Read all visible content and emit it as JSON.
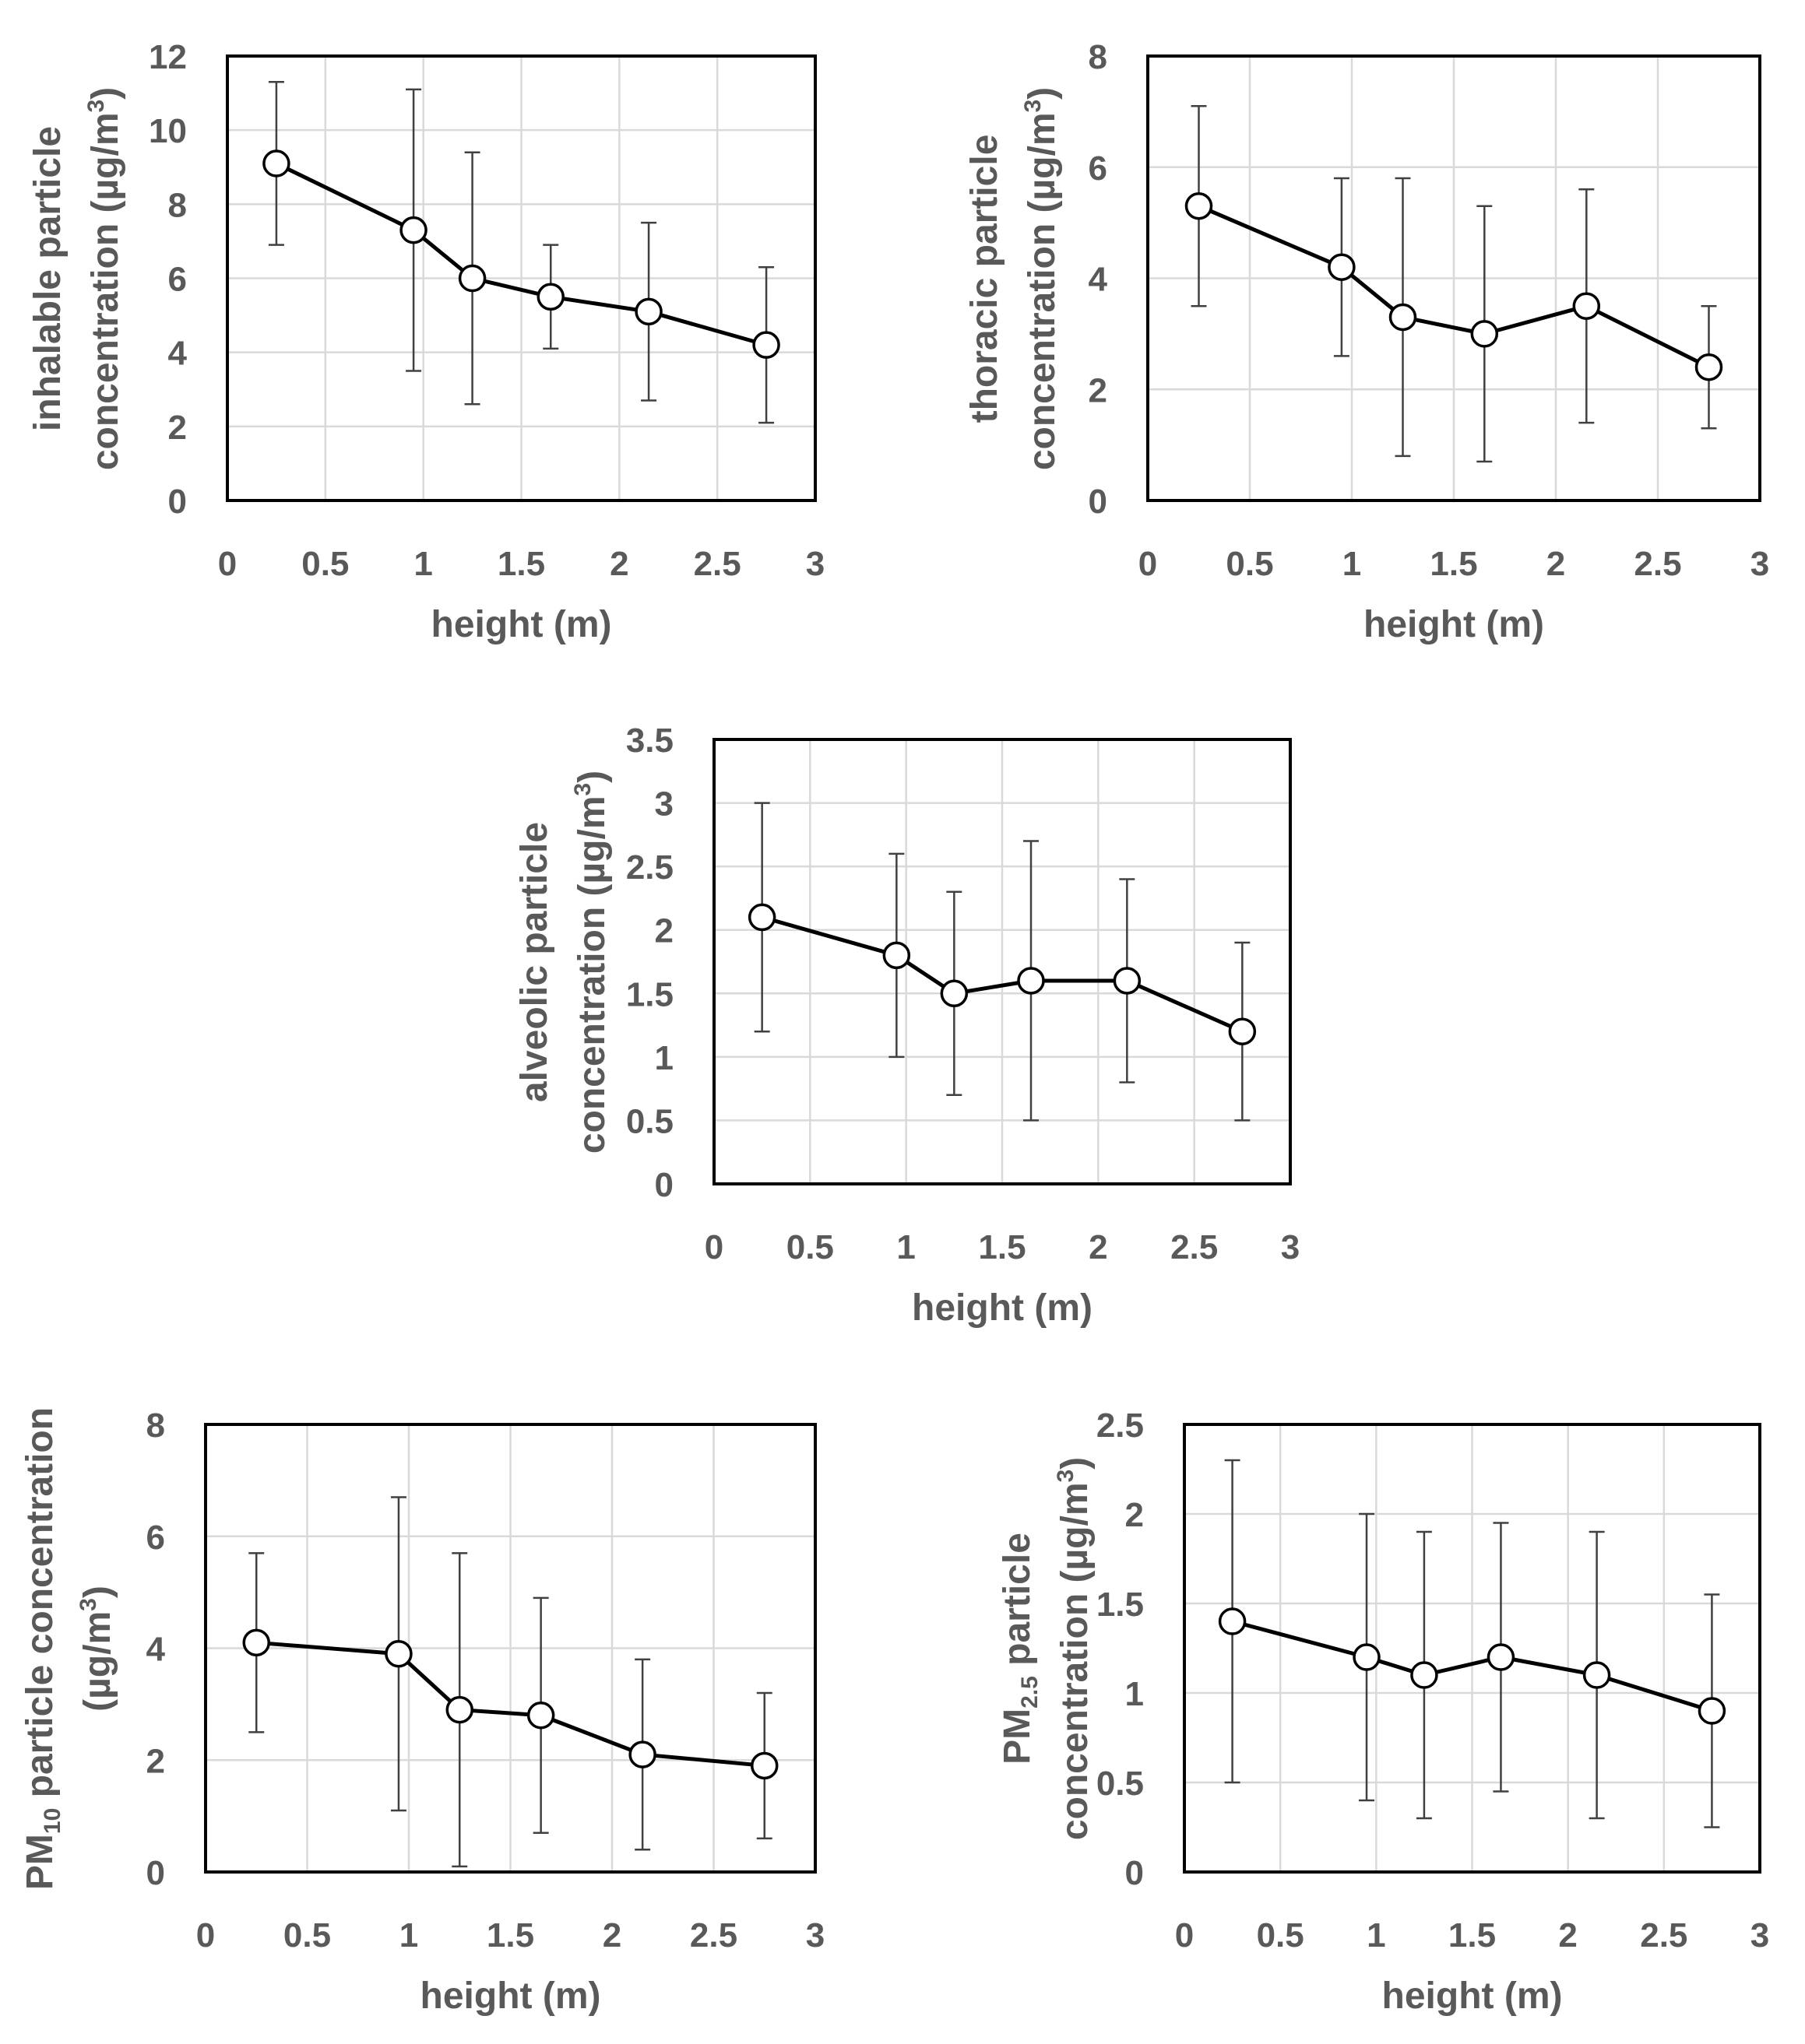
{
  "chart_data": [
    {
      "type": "line",
      "xlabel": "height (m)",
      "ylabel_lines": [
        "inhalable particle",
        "concentration (µg/m",
        "3",
        ")"
      ],
      "xlim": [
        0,
        3
      ],
      "xticks": [
        0,
        0.5,
        1,
        1.5,
        2,
        2.5,
        3
      ],
      "xtick_labels": [
        "0",
        "0.5",
        "1",
        "1.5",
        "2",
        "2.5",
        "3"
      ],
      "ylim": [
        0,
        12
      ],
      "yticks": [
        0,
        2,
        4,
        6,
        8,
        10,
        12
      ],
      "ytick_labels": [
        "0",
        "2",
        "4",
        "6",
        "8",
        "10",
        "12"
      ],
      "grid": true,
      "series": [
        {
          "x": [
            0.25,
            0.95,
            1.25,
            1.65,
            2.15,
            2.75
          ],
          "y": [
            9.1,
            7.3,
            6.0,
            5.5,
            5.1,
            4.2
          ],
          "err_low": [
            6.9,
            3.5,
            2.6,
            4.1,
            2.7,
            2.1
          ],
          "err_high": [
            11.3,
            11.1,
            9.4,
            6.9,
            7.5,
            6.3
          ]
        }
      ]
    },
    {
      "type": "line",
      "xlabel": "height (m)",
      "ylabel_lines": [
        "thoracic particle",
        "concentration (µg/m",
        "3",
        ")"
      ],
      "xlim": [
        0,
        3
      ],
      "xticks": [
        0,
        0.5,
        1,
        1.5,
        2,
        2.5,
        3
      ],
      "xtick_labels": [
        "0",
        "0.5",
        "1",
        "1.5",
        "2",
        "2.5",
        "3"
      ],
      "ylim": [
        0,
        8
      ],
      "yticks": [
        0,
        2,
        4,
        6,
        8
      ],
      "ytick_labels": [
        "0",
        "2",
        "4",
        "6",
        "8"
      ],
      "grid": true,
      "series": [
        {
          "x": [
            0.25,
            0.95,
            1.25,
            1.65,
            2.15,
            2.75
          ],
          "y": [
            5.3,
            4.2,
            3.3,
            3.0,
            3.5,
            2.4
          ],
          "err_low": [
            3.5,
            2.6,
            0.8,
            0.7,
            1.4,
            1.3
          ],
          "err_high": [
            7.1,
            5.8,
            5.8,
            5.3,
            5.6,
            3.5
          ]
        }
      ]
    },
    {
      "type": "line",
      "xlabel": "height (m)",
      "ylabel_lines": [
        "alveolic particle",
        "concentration (µg/m",
        "3",
        ")"
      ],
      "xlim": [
        0,
        3
      ],
      "xticks": [
        0,
        0.5,
        1,
        1.5,
        2,
        2.5,
        3
      ],
      "xtick_labels": [
        "0",
        "0.5",
        "1",
        "1.5",
        "2",
        "2.5",
        "3"
      ],
      "ylim": [
        0,
        3.5
      ],
      "yticks": [
        0,
        0.5,
        1,
        1.5,
        2,
        2.5,
        3,
        3.5
      ],
      "ytick_labels": [
        "0",
        "0.5",
        "1",
        "1.5",
        "2",
        "2.5",
        "3",
        "3.5"
      ],
      "grid": true,
      "series": [
        {
          "x": [
            0.25,
            0.95,
            1.25,
            1.65,
            2.15,
            2.75
          ],
          "y": [
            2.1,
            1.8,
            1.5,
            1.6,
            1.6,
            1.2
          ],
          "err_low": [
            1.2,
            1.0,
            0.7,
            0.5,
            0.8,
            0.5
          ],
          "err_high": [
            3.0,
            2.6,
            2.3,
            2.7,
            2.4,
            1.9
          ]
        }
      ]
    },
    {
      "type": "line",
      "xlabel": "height (m)",
      "ylabel_lines": [
        "PM",
        "10",
        " particle concentration",
        "(µg/m",
        "3",
        ")"
      ],
      "xlim": [
        0,
        3
      ],
      "xticks": [
        0,
        0.5,
        1,
        1.5,
        2,
        2.5,
        3
      ],
      "xtick_labels": [
        "0",
        "0.5",
        "1",
        "1.5",
        "2",
        "2.5",
        "3"
      ],
      "ylim": [
        0,
        8
      ],
      "yticks": [
        0,
        2,
        4,
        6,
        8
      ],
      "ytick_labels": [
        "0",
        "2",
        "4",
        "6",
        "8"
      ],
      "grid": true,
      "series": [
        {
          "x": [
            0.25,
            0.95,
            1.25,
            1.65,
            2.15,
            2.75
          ],
          "y": [
            4.1,
            3.9,
            2.9,
            2.8,
            2.1,
            1.9
          ],
          "err_low": [
            2.5,
            1.1,
            0.1,
            0.7,
            0.4,
            0.6
          ],
          "err_high": [
            5.7,
            6.7,
            5.7,
            4.9,
            3.8,
            3.2
          ]
        }
      ]
    },
    {
      "type": "line",
      "xlabel": "height (m)",
      "ylabel_lines": [
        "PM",
        "2.5",
        " particle",
        "concentration (µg/m",
        "3",
        ")"
      ],
      "xlim": [
        0,
        3
      ],
      "xticks": [
        0,
        0.5,
        1,
        1.5,
        2,
        2.5,
        3
      ],
      "xtick_labels": [
        "0",
        "0.5",
        "1",
        "1.5",
        "2",
        "2.5",
        "3"
      ],
      "ylim": [
        0,
        2.5
      ],
      "yticks": [
        0,
        0.5,
        1,
        1.5,
        2,
        2.5
      ],
      "ytick_labels": [
        "0",
        "0.5",
        "1",
        "1.5",
        "2",
        "2.5"
      ],
      "grid": true,
      "series": [
        {
          "x": [
            0.25,
            0.95,
            1.25,
            1.65,
            2.15,
            2.75
          ],
          "y": [
            1.4,
            1.2,
            1.1,
            1.2,
            1.1,
            0.9
          ],
          "err_low": [
            0.5,
            0.4,
            0.3,
            0.45,
            0.3,
            0.25
          ],
          "err_high": [
            2.3,
            2.0,
            1.9,
            1.95,
            1.9,
            1.55
          ]
        }
      ]
    }
  ],
  "colors": {
    "text": "#595959",
    "grid": "#d9d9d9",
    "frame": "#000000",
    "line": "#000000",
    "marker_fill": "#ffffff"
  }
}
